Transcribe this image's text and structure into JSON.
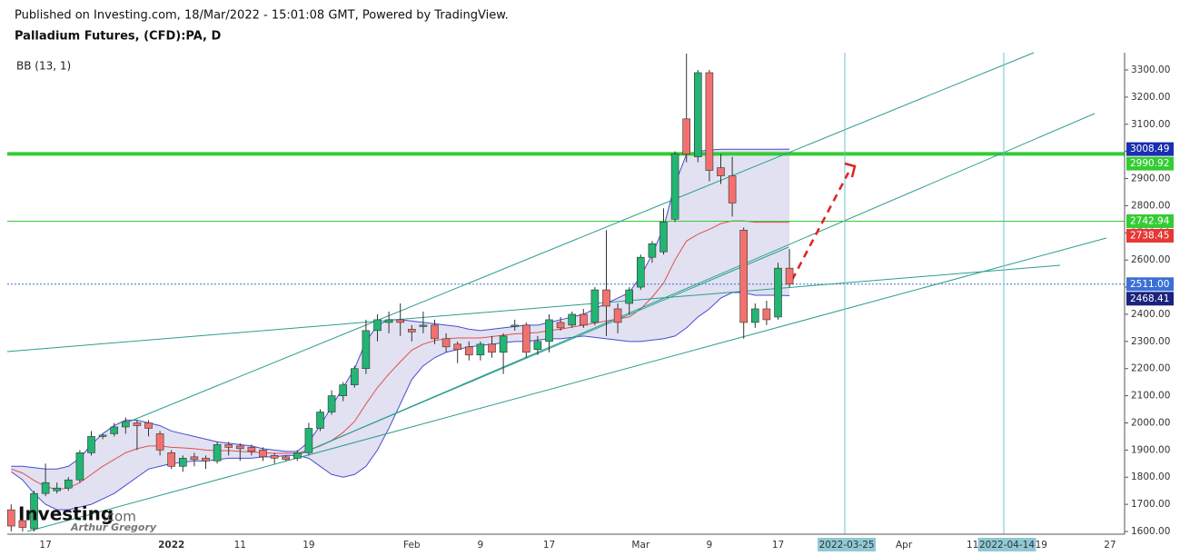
{
  "chart_data": {
    "type": "candlestick",
    "header": "Published on Investing.com, 18/Mar/2022 - 15:01:08 GMT, Powered by TradingView.",
    "title": "Palladium Futures, (CFD):PA, D",
    "indicator": "BB (13, 1)",
    "brand": "Investing",
    "brand_suffix": ".com",
    "author": "Arthur Gregory",
    "categories": [
      null,
      null,
      null,
      "17",
      null,
      null,
      null,
      null,
      null,
      null,
      null,
      null,
      null,
      null,
      "2022",
      null,
      null,
      null,
      null,
      null,
      "11",
      null,
      null,
      null,
      null,
      null,
      "19",
      null,
      null,
      null,
      null,
      null,
      null,
      null,
      null,
      "Feb",
      null,
      null,
      null,
      null,
      null,
      "9",
      null,
      null,
      null,
      null,
      null,
      "17",
      null,
      null,
      null,
      null,
      null,
      null,
      null,
      "Mar",
      null,
      null,
      null,
      null,
      null,
      "9",
      null,
      null,
      null,
      null,
      null,
      "17",
      null,
      null,
      null,
      null,
      null,
      "2022-03-25",
      null,
      null,
      null,
      null,
      "Apr",
      null,
      null,
      null,
      null,
      null,
      "11",
      null,
      null,
      "2022-04-14",
      null,
      null,
      "19",
      null,
      null,
      null,
      null,
      null,
      "27"
    ],
    "open": [
      1680,
      1640,
      1610,
      1740,
      1750,
      1760,
      1790,
      1890,
      1950,
      1960,
      1985,
      2000,
      2000,
      1960,
      1890,
      1840,
      1875,
      1870,
      1860,
      1920,
      1915,
      1910,
      1900,
      1880,
      1875,
      1870,
      1890,
      1980,
      2040,
      2100,
      2140,
      2200,
      2340,
      2370,
      2380,
      2345,
      2355,
      2360,
      2310,
      2290,
      2280,
      2250,
      2290,
      2260,
      2355,
      2360,
      2270,
      2300,
      2370,
      2360,
      2400,
      2370,
      2490,
      2420,
      2440,
      2500,
      2610,
      2630,
      2750,
      3120,
      2980,
      3290,
      2940,
      2910,
      2710,
      2370,
      2420,
      2390,
      2570,
      null,
      null,
      null,
      null,
      null,
      null,
      null,
      null,
      null,
      null,
      null,
      null,
      null,
      null,
      null,
      null,
      null,
      null,
      null,
      null,
      null,
      null,
      null,
      null,
      null,
      null,
      null,
      null
    ],
    "high": [
      1700,
      1650,
      1750,
      1850,
      1780,
      1800,
      1900,
      1970,
      1960,
      2000,
      2020,
      2010,
      2010,
      1970,
      1900,
      1880,
      1890,
      1880,
      1930,
      1930,
      1925,
      1920,
      1910,
      1890,
      1880,
      1900,
      2000,
      2050,
      2120,
      2150,
      2210,
      2380,
      2400,
      2410,
      2440,
      2360,
      2410,
      2380,
      2330,
      2300,
      2300,
      2300,
      2320,
      2330,
      2380,
      2370,
      2320,
      2400,
      2390,
      2410,
      2420,
      2500,
      2710,
      2440,
      2500,
      2620,
      2670,
      2790,
      3000,
      3360,
      3300,
      3300,
      2990,
      2980,
      2720,
      2440,
      2450,
      2590,
      2640,
      null,
      null,
      null,
      null,
      null,
      null,
      null,
      null,
      null,
      null,
      null,
      null,
      null,
      null,
      null,
      null,
      null,
      null,
      null,
      null,
      null,
      null,
      null,
      null,
      null,
      null,
      null,
      null
    ],
    "low": [
      1600,
      1600,
      1600,
      1730,
      1740,
      1750,
      1780,
      1880,
      1940,
      1950,
      1960,
      1900,
      1950,
      1880,
      1830,
      1820,
      1840,
      1830,
      1850,
      1880,
      1860,
      1880,
      1860,
      1850,
      1860,
      1860,
      1880,
      1970,
      2030,
      2080,
      2130,
      2180,
      2300,
      2330,
      2320,
      2300,
      2330,
      2290,
      2260,
      2220,
      2230,
      2230,
      2240,
      2180,
      2340,
      2240,
      2250,
      2260,
      2340,
      2350,
      2350,
      2360,
      2320,
      2330,
      2400,
      2490,
      2590,
      2620,
      2740,
      2960,
      2960,
      2890,
      2880,
      2760,
      2310,
      2350,
      2360,
      2380,
      2500,
      null,
      null,
      null,
      null,
      null,
      null,
      null,
      null,
      null,
      null,
      null,
      null,
      null,
      null,
      null,
      null,
      null,
      null,
      null,
      null,
      null,
      null,
      null,
      null,
      null,
      null,
      null,
      null
    ],
    "close": [
      1620,
      1615,
      1740,
      1780,
      1760,
      1790,
      1890,
      1950,
      1955,
      1985,
      2005,
      1990,
      1980,
      1900,
      1840,
      1870,
      1865,
      1860,
      1920,
      1910,
      1905,
      1895,
      1875,
      1870,
      1865,
      1890,
      1980,
      2040,
      2100,
      2140,
      2200,
      2340,
      2380,
      2380,
      2370,
      2335,
      2360,
      2310,
      2280,
      2270,
      2250,
      2290,
      2260,
      2320,
      2360,
      2260,
      2300,
      2380,
      2350,
      2400,
      2360,
      2490,
      2430,
      2370,
      2490,
      2610,
      2660,
      2740,
      2990,
      2990,
      3290,
      2930,
      2910,
      2810,
      2370,
      2420,
      2380,
      2570,
      2511,
      null,
      null,
      null,
      null,
      null,
      null,
      null,
      null,
      null,
      null,
      null,
      null,
      null,
      null,
      null,
      null,
      null,
      null,
      null,
      null,
      null,
      null,
      null,
      null,
      null,
      null,
      null,
      null
    ],
    "up_color": "#22b573",
    "down_color": "#f2716e",
    "bb_upper": [
      1840,
      1840,
      1835,
      1830,
      1830,
      1840,
      1870,
      1920,
      1960,
      1990,
      2010,
      2010,
      2000,
      1990,
      1970,
      1960,
      1950,
      1940,
      1930,
      1925,
      1920,
      1915,
      1905,
      1900,
      1895,
      1895,
      1930,
      1990,
      2060,
      2130,
      2200,
      2300,
      2360,
      2380,
      2380,
      2375,
      2370,
      2365,
      2360,
      2355,
      2345,
      2340,
      2345,
      2350,
      2355,
      2360,
      2360,
      2370,
      2380,
      2390,
      2400,
      2420,
      2440,
      2460,
      2480,
      2540,
      2620,
      2720,
      2880,
      2990,
      3000,
      3005,
      3008,
      3008,
      3008,
      3008,
      3008,
      3008,
      3008.49,
      null,
      null,
      null,
      null,
      null,
      null,
      null,
      null,
      null,
      null,
      null,
      null,
      null,
      null,
      null,
      null,
      null,
      null,
      null,
      null,
      null,
      null,
      null,
      null,
      null,
      null,
      null,
      null
    ],
    "bb_middle": [
      1830,
      1815,
      1788,
      1765,
      1755,
      1760,
      1780,
      1810,
      1840,
      1865,
      1890,
      1905,
      1915,
      1915,
      1910,
      1908,
      1905,
      1900,
      1898,
      1898,
      1895,
      1893,
      1890,
      1888,
      1888,
      1888,
      1900,
      1915,
      1935,
      1965,
      2005,
      2070,
      2130,
      2180,
      2225,
      2268,
      2290,
      2303,
      2310,
      2313,
      2313,
      2313,
      2318,
      2323,
      2328,
      2330,
      2333,
      2340,
      2345,
      2353,
      2360,
      2368,
      2375,
      2383,
      2390,
      2420,
      2463,
      2515,
      2600,
      2670,
      2695,
      2713,
      2734,
      2744,
      2744,
      2739,
      2739,
      2739,
      2738.45,
      null,
      null,
      null,
      null,
      null,
      null,
      null,
      null,
      null,
      null,
      null,
      null,
      null,
      null,
      null,
      null,
      null,
      null,
      null,
      null,
      null,
      null,
      null,
      null,
      null,
      null,
      null,
      null
    ],
    "bb_lower": [
      1820,
      1790,
      1740,
      1700,
      1680,
      1680,
      1690,
      1700,
      1720,
      1740,
      1770,
      1800,
      1830,
      1840,
      1850,
      1855,
      1860,
      1860,
      1865,
      1870,
      1870,
      1870,
      1875,
      1875,
      1880,
      1880,
      1870,
      1840,
      1810,
      1800,
      1810,
      1840,
      1900,
      1980,
      2070,
      2160,
      2210,
      2240,
      2260,
      2270,
      2280,
      2285,
      2290,
      2295,
      2300,
      2300,
      2305,
      2310,
      2310,
      2315,
      2320,
      2315,
      2310,
      2305,
      2300,
      2300,
      2305,
      2310,
      2320,
      2350,
      2390,
      2420,
      2460,
      2480,
      2480,
      2470,
      2470,
      2470,
      2468.41,
      null,
      null,
      null,
      null,
      null,
      null,
      null,
      null,
      null,
      null,
      null,
      null,
      null,
      null,
      null,
      null,
      null,
      null,
      null,
      null,
      null,
      null,
      null,
      null,
      null,
      null,
      null,
      null
    ],
    "bb_band_color": "#4a4ad0",
    "bb_mid_color": "#e05050",
    "bb_fill": "#dcdcf0",
    "ylim": [
      1590,
      3363.6
    ],
    "yticks": [
      {
        "value": 1600,
        "label": "1600.00"
      },
      {
        "value": 1700,
        "label": "1700.00"
      },
      {
        "value": 1800,
        "label": "1800.00"
      },
      {
        "value": 1900,
        "label": "1900.00"
      },
      {
        "value": 2000,
        "label": "2000.00"
      },
      {
        "value": 2100,
        "label": "2100.00"
      },
      {
        "value": 2200,
        "label": "2200.00"
      },
      {
        "value": 2300,
        "label": "2300.00"
      },
      {
        "value": 2400,
        "label": "2400.00"
      },
      {
        "value": 2500,
        "label": "2500.00"
      },
      {
        "value": 2600,
        "label": "2600.00"
      },
      {
        "value": 2700,
        "label": "2700.00"
      },
      {
        "value": 2800,
        "label": "2800.00"
      },
      {
        "value": 2900,
        "label": "2900.00"
      },
      {
        "value": 3000,
        "label": "3000.00"
      },
      {
        "value": 3100,
        "label": "3100.00"
      },
      {
        "value": 3200,
        "label": "3200.00"
      },
      {
        "value": 3300,
        "label": "3300.00"
      }
    ],
    "price_labels": [
      {
        "value": 3008.49,
        "label": "3008.49",
        "color": "#1a2fb0"
      },
      {
        "value": 2990.92,
        "label": "2990.92",
        "color": "#33cc33",
        "line": "thick"
      },
      {
        "value": 2742.94,
        "label": "2742.94",
        "color": "#33cc33",
        "line": "thin"
      },
      {
        "value": 2738.45,
        "label": "2738.45",
        "color": "#e53935"
      },
      {
        "value": 2511,
        "label": "2511.00",
        "color": "#3b6fd6",
        "line": "dotted"
      },
      {
        "value": 2468.41,
        "label": "2468.41",
        "color": "#1a237e"
      }
    ]
  }
}
